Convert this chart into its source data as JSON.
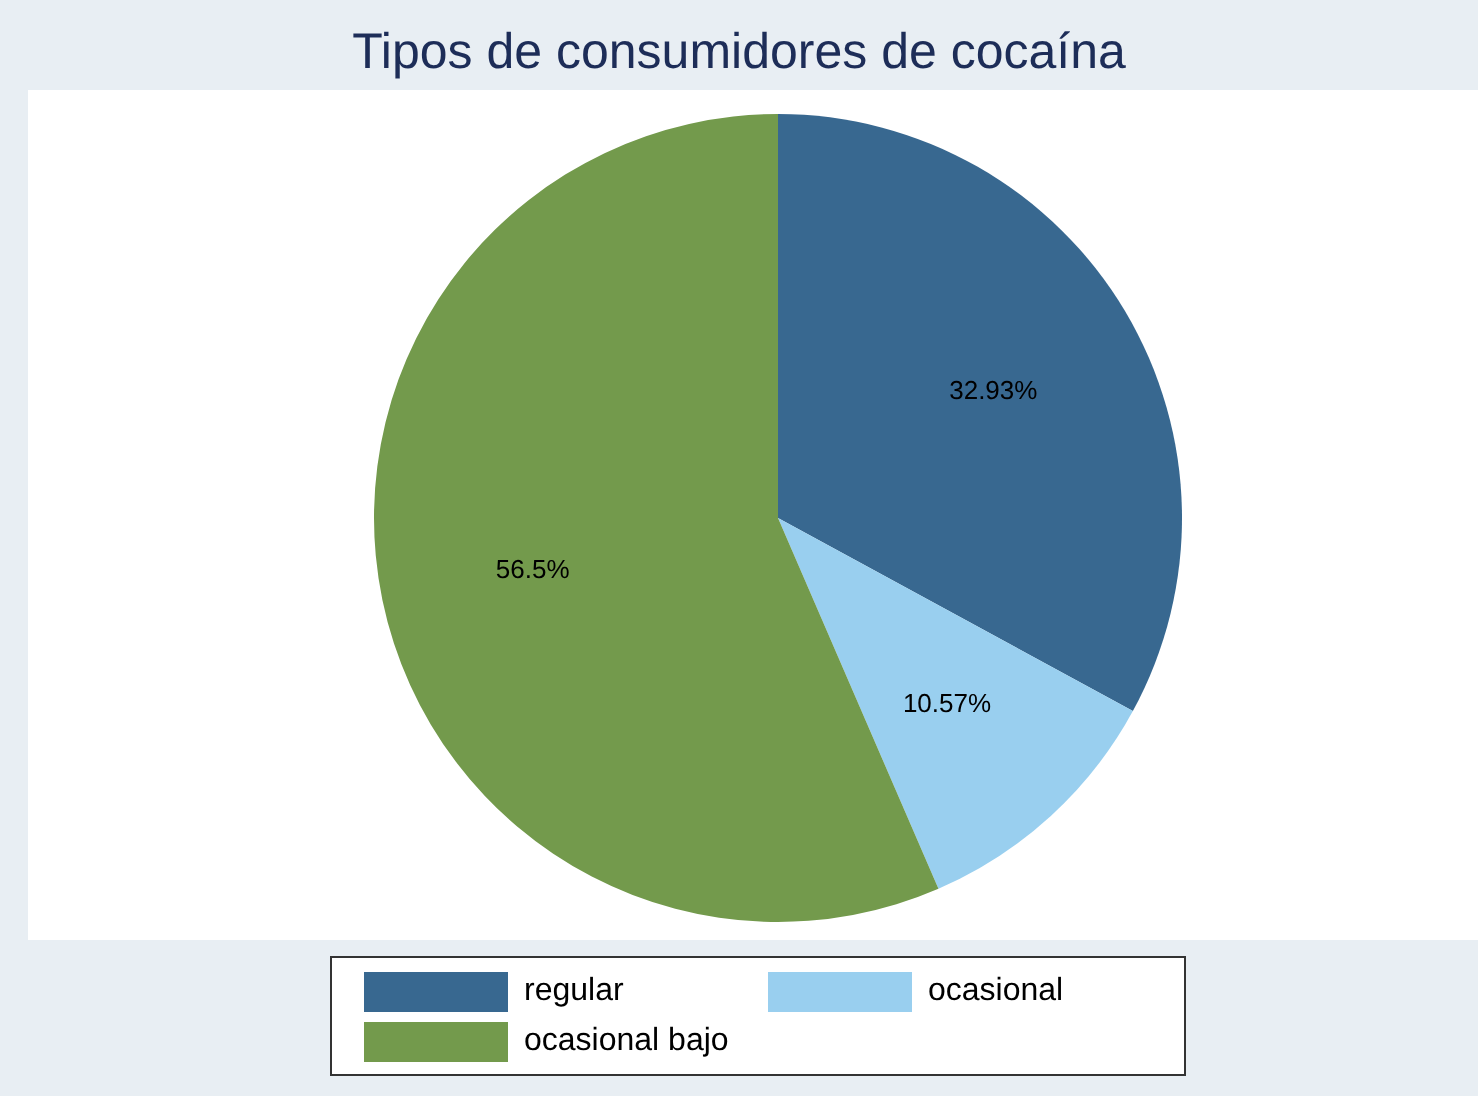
{
  "chart_data": {
    "type": "pie",
    "title": "Tipos de consumidores de cocaína",
    "categories": [
      "regular",
      "ocasional",
      "ocasional bajo"
    ],
    "values": [
      32.93,
      10.57,
      56.5
    ],
    "colors": [
      "#386890",
      "#99cfef",
      "#739a4c"
    ],
    "value_labels": [
      "32.93%",
      "10.57%",
      "56.5%"
    ],
    "legend": "bottom"
  }
}
